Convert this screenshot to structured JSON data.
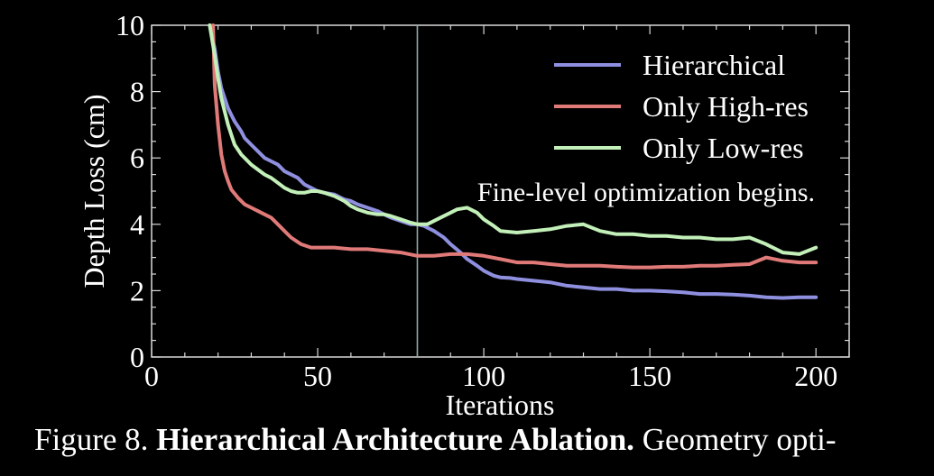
{
  "chart_data": {
    "type": "line",
    "xlabel": "Iterations",
    "ylabel": "Depth Loss (cm)",
    "xlim": [
      0,
      210
    ],
    "ylim": [
      0,
      10
    ],
    "xticks": [
      0,
      50,
      100,
      150,
      200
    ],
    "yticks": [
      0,
      2,
      4,
      6,
      8,
      10
    ],
    "grid": false,
    "legend_position": "top-right",
    "annotation": {
      "text": "Fine-level optimization begins.",
      "x": 80,
      "color": "#8fa8a6"
    },
    "series": [
      {
        "name": "Hierarchical",
        "color": "#8f8fe0",
        "x": [
          17.5,
          19,
          20,
          21,
          22,
          23,
          24,
          25,
          27,
          28,
          30,
          32,
          34,
          36,
          38,
          40,
          42,
          44,
          46,
          48,
          50,
          52,
          55,
          58,
          60,
          62,
          65,
          68,
          70,
          72,
          75,
          78,
          80,
          82,
          85,
          88,
          90,
          93,
          95,
          98,
          100,
          103,
          105,
          108,
          110,
          115,
          120,
          125,
          130,
          135,
          140,
          145,
          150,
          155,
          160,
          165,
          170,
          175,
          180,
          185,
          190,
          195,
          200
        ],
        "y": [
          10,
          9.3,
          8.6,
          8.1,
          7.8,
          7.5,
          7.3,
          7.1,
          6.8,
          6.6,
          6.4,
          6.2,
          6.0,
          5.9,
          5.8,
          5.6,
          5.5,
          5.4,
          5.2,
          5.1,
          5.0,
          4.95,
          4.9,
          4.75,
          4.7,
          4.6,
          4.5,
          4.4,
          4.3,
          4.2,
          4.1,
          4.0,
          4.0,
          3.95,
          3.8,
          3.6,
          3.4,
          3.15,
          2.95,
          2.75,
          2.6,
          2.45,
          2.4,
          2.38,
          2.35,
          2.3,
          2.25,
          2.15,
          2.1,
          2.05,
          2.05,
          2.0,
          2.0,
          1.98,
          1.95,
          1.9,
          1.9,
          1.88,
          1.85,
          1.8,
          1.78,
          1.8,
          1.8
        ]
      },
      {
        "name": "Only High-res",
        "color": "#e07a78",
        "x": [
          18.5,
          19,
          20,
          21,
          22,
          23,
          24,
          26,
          28,
          30,
          32,
          34,
          36,
          38,
          40,
          42,
          45,
          48,
          50,
          55,
          60,
          65,
          70,
          75,
          80,
          85,
          90,
          95,
          100,
          105,
          110,
          115,
          120,
          125,
          130,
          135,
          140,
          145,
          150,
          155,
          160,
          165,
          170,
          175,
          180,
          185,
          190,
          195,
          200
        ],
        "y": [
          10,
          8.2,
          7.0,
          6.1,
          5.6,
          5.3,
          5.05,
          4.8,
          4.6,
          4.5,
          4.4,
          4.3,
          4.2,
          4.0,
          3.8,
          3.6,
          3.4,
          3.3,
          3.3,
          3.3,
          3.25,
          3.25,
          3.2,
          3.15,
          3.05,
          3.05,
          3.1,
          3.1,
          3.05,
          2.95,
          2.85,
          2.85,
          2.8,
          2.75,
          2.75,
          2.75,
          2.72,
          2.7,
          2.7,
          2.72,
          2.72,
          2.75,
          2.75,
          2.78,
          2.8,
          3.0,
          2.9,
          2.85,
          2.85
        ]
      },
      {
        "name": "Only Low-res",
        "color": "#c2f0b8",
        "x": [
          17.5,
          19,
          20,
          21,
          22,
          23,
          24,
          25,
          27,
          28,
          30,
          32,
          34,
          36,
          38,
          40,
          42,
          44,
          46,
          48,
          50,
          52,
          55,
          58,
          60,
          62,
          65,
          68,
          70,
          72,
          75,
          78,
          80,
          83,
          85,
          88,
          90,
          92,
          95,
          98,
          100,
          103,
          105,
          110,
          115,
          120,
          125,
          130,
          135,
          140,
          145,
          150,
          155,
          160,
          165,
          170,
          175,
          180,
          185,
          190,
          195,
          200
        ],
        "y": [
          10,
          9.1,
          8.4,
          7.8,
          7.4,
          7.0,
          6.7,
          6.4,
          6.1,
          6.0,
          5.8,
          5.65,
          5.5,
          5.4,
          5.25,
          5.1,
          5.0,
          4.95,
          4.95,
          5.0,
          5.0,
          4.95,
          4.85,
          4.7,
          4.55,
          4.45,
          4.35,
          4.3,
          4.3,
          4.25,
          4.15,
          4.05,
          4.0,
          4.0,
          4.1,
          4.25,
          4.35,
          4.45,
          4.5,
          4.35,
          4.15,
          3.95,
          3.8,
          3.75,
          3.8,
          3.85,
          3.95,
          4.0,
          3.8,
          3.7,
          3.7,
          3.65,
          3.65,
          3.6,
          3.6,
          3.55,
          3.55,
          3.6,
          3.4,
          3.15,
          3.1,
          3.3
        ]
      }
    ]
  },
  "caption": {
    "prefix": "Figure 8. ",
    "bold": "Hierarchical Architecture Ablation.",
    "rest": " Geometry opti-"
  }
}
